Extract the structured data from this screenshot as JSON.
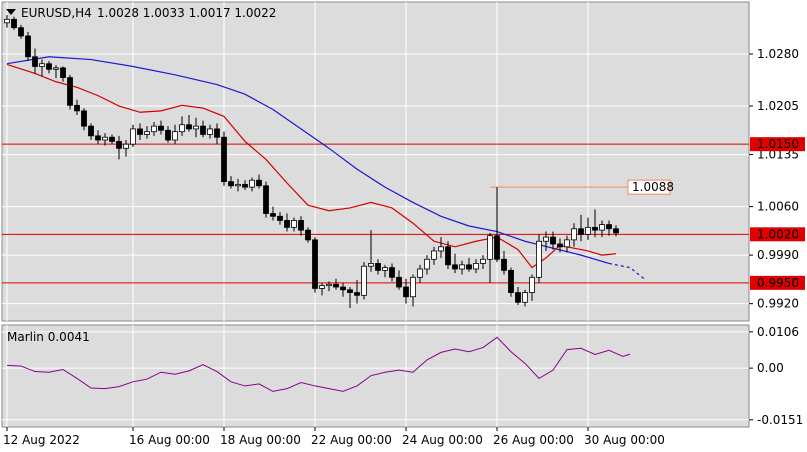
{
  "header": {
    "symbol_label": "EURUSD,H4",
    "ohlc_label": "1.0028 1.0033 1.0017 1.0022"
  },
  "indicator": {
    "label": "Marlin 0.0041"
  },
  "colors": {
    "background": "#ffffff",
    "panel": "#dcdcdc",
    "grid": "#ffffff",
    "candle": "#000000",
    "bull_fill": "#ffffff",
    "bear_fill": "#000000",
    "ma_fast": "#d40000",
    "ma_slow": "#1a1ad0",
    "levels": "#e00000",
    "target": "#f08a5a",
    "oscillator": "#8a008a"
  },
  "chart_data": [
    {
      "type": "candlestick",
      "title": "EURUSD,H4",
      "price_axis_ticks": [
        "1.0280",
        "1.0205",
        "1.0135",
        "1.0060",
        "0.9990",
        "0.9920"
      ],
      "price_tick_values": [
        1.028,
        1.0205,
        1.0135,
        1.006,
        0.999,
        0.992
      ],
      "ylim": [
        0.9895,
        1.0355
      ],
      "time_axis_labels": [
        "12 Aug 2022",
        "16 Aug 00:00",
        "18 Aug 00:00",
        "22 Aug 00:00",
        "24 Aug 00:00",
        "26 Aug 00:00",
        "30 Aug 00:00"
      ],
      "time_label_bars": [
        0,
        18,
        31,
        44,
        57,
        70,
        83
      ],
      "horizontal_levels": [
        {
          "value": 1.015,
          "label": "1.0150"
        },
        {
          "value": 1.002,
          "label": "1.0020"
        },
        {
          "value": 0.995,
          "label": "0.9950"
        }
      ],
      "target_level": {
        "value": 1.0088,
        "label": "1.0088",
        "from_bar": 69,
        "to_bar": 89
      },
      "candles": [
        [
          1.0325,
          1.0336,
          1.0318,
          1.033
        ],
        [
          1.033,
          1.0334,
          1.0315,
          1.0318
        ],
        [
          1.0318,
          1.0322,
          1.0302,
          1.0306
        ],
        [
          1.0306,
          1.0312,
          1.027,
          1.0276
        ],
        [
          1.0276,
          1.0288,
          1.0252,
          1.0262
        ],
        [
          1.0262,
          1.0272,
          1.0248,
          1.0266
        ],
        [
          1.0266,
          1.027,
          1.0252,
          1.0258
        ],
        [
          1.0258,
          1.0264,
          1.0245,
          1.026
        ],
        [
          1.026,
          1.0262,
          1.024,
          1.0246
        ],
        [
          1.0246,
          1.025,
          1.02,
          1.0206
        ],
        [
          1.0206,
          1.0214,
          1.0192,
          1.0198
        ],
        [
          1.0198,
          1.0202,
          1.017,
          1.0176
        ],
        [
          1.0176,
          1.018,
          1.0156,
          1.0162
        ],
        [
          1.0162,
          1.017,
          1.015,
          1.0156
        ],
        [
          1.0156,
          1.0166,
          1.0148,
          1.016
        ],
        [
          1.016,
          1.0164,
          1.015,
          1.0154
        ],
        [
          1.0154,
          1.0162,
          1.0128,
          1.0144
        ],
        [
          1.0144,
          1.0156,
          1.0132,
          1.015
        ],
        [
          1.015,
          1.0178,
          1.0146,
          1.0172
        ],
        [
          1.0172,
          1.018,
          1.0156,
          1.0164
        ],
        [
          1.0164,
          1.0176,
          1.0158,
          1.0168
        ],
        [
          1.0168,
          1.0182,
          1.0162,
          1.0176
        ],
        [
          1.0176,
          1.0184,
          1.0164,
          1.017
        ],
        [
          1.017,
          1.0176,
          1.0152,
          1.0156
        ],
        [
          1.0156,
          1.0178,
          1.015,
          1.0168
        ],
        [
          1.0168,
          1.019,
          1.0162,
          1.0178
        ],
        [
          1.0178,
          1.0192,
          1.0168,
          1.0172
        ],
        [
          1.0172,
          1.0188,
          1.016,
          1.0176
        ],
        [
          1.0176,
          1.0184,
          1.016,
          1.0164
        ],
        [
          1.0164,
          1.0178,
          1.0158,
          1.0172
        ],
        [
          1.0172,
          1.018,
          1.015,
          1.016
        ],
        [
          1.016,
          1.0168,
          1.009,
          1.0096
        ],
        [
          1.0096,
          1.0104,
          1.0086,
          1.009
        ],
        [
          1.009,
          1.01,
          1.0082,
          1.0092
        ],
        [
          1.0092,
          1.0098,
          1.0084,
          1.0088
        ],
        [
          1.0088,
          1.0102,
          1.0082,
          1.0098
        ],
        [
          1.0098,
          1.0106,
          1.0086,
          1.009
        ],
        [
          1.009,
          1.0096,
          1.0044,
          1.005
        ],
        [
          1.005,
          1.006,
          1.004,
          1.0046
        ],
        [
          1.0046,
          1.0052,
          1.0034,
          1.004
        ],
        [
          1.004,
          1.005,
          1.0024,
          1.003
        ],
        [
          1.003,
          1.0044,
          1.0024,
          1.004
        ],
        [
          1.004,
          1.0046,
          1.0018,
          1.0026
        ],
        [
          1.0026,
          1.003,
          1.0008,
          1.0012
        ],
        [
          1.0012,
          1.0016,
          0.9936,
          0.9942
        ],
        [
          0.9942,
          0.995,
          0.9932,
          0.9946
        ],
        [
          0.9946,
          0.9952,
          0.9938,
          0.9948
        ],
        [
          0.9948,
          0.9956,
          0.994,
          0.9944
        ],
        [
          0.9944,
          0.995,
          0.993,
          0.994
        ],
        [
          0.994,
          0.9944,
          0.9914,
          0.9936
        ],
        [
          0.9936,
          0.9954,
          0.992,
          0.9932
        ],
        [
          0.9932,
          0.998,
          0.9926,
          0.9974
        ],
        [
          0.9974,
          1.0026,
          0.9966,
          0.9978
        ],
        [
          0.9978,
          0.9984,
          0.9962,
          0.9968
        ],
        [
          0.9968,
          0.9976,
          0.9958,
          0.9972
        ],
        [
          0.9972,
          0.9978,
          0.9952,
          0.9958
        ],
        [
          0.9958,
          0.9968,
          0.994,
          0.9944
        ],
        [
          0.9944,
          0.9956,
          0.992,
          0.993
        ],
        [
          0.993,
          0.9962,
          0.9916,
          0.9958
        ],
        [
          0.9958,
          0.9976,
          0.995,
          0.997
        ],
        [
          0.997,
          0.999,
          0.9962,
          0.9984
        ],
        [
          0.9984,
          1.0002,
          0.9976,
          0.9996
        ],
        [
          0.9996,
          1.0016,
          0.9986,
          1.0002
        ],
        [
          1.0002,
          1.001,
          0.997,
          0.9976
        ],
        [
          0.9976,
          0.9992,
          0.9964,
          0.997
        ],
        [
          0.997,
          0.9982,
          0.9962,
          0.9976
        ],
        [
          0.9976,
          0.9986,
          0.9966,
          0.997
        ],
        [
          0.997,
          0.9984,
          0.9964,
          0.9978
        ],
        [
          0.9978,
          0.999,
          0.997,
          0.9984
        ],
        [
          0.9984,
          1.0022,
          0.995,
          1.0018
        ],
        [
          1.0018,
          1.0088,
          0.998,
          0.9984
        ],
        [
          0.9984,
          0.9996,
          0.9962,
          0.9968
        ],
        [
          0.9968,
          0.9972,
          0.993,
          0.9936
        ],
        [
          0.9936,
          0.9944,
          0.9918,
          0.9922
        ],
        [
          0.9922,
          0.994,
          0.9916,
          0.9936
        ],
        [
          0.9936,
          0.9962,
          0.9924,
          0.9958
        ],
        [
          0.9958,
          1.002,
          0.995,
          1.001
        ],
        [
          1.001,
          1.0024,
          0.9996,
          1.0016
        ],
        [
          1.0016,
          1.0024,
          0.9998,
          1.0006
        ],
        [
          1.0006,
          1.0014,
          0.9994,
          1.0002
        ],
        [
          1.0002,
          1.0018,
          0.9994,
          1.0012
        ],
        [
          1.0012,
          1.0036,
          1.0002,
          1.0028
        ],
        [
          1.0028,
          1.0048,
          1.001,
          1.002
        ],
        [
          1.002,
          1.0044,
          1.0012,
          1.003
        ],
        [
          1.003,
          1.0056,
          1.0016,
          1.0026
        ],
        [
          1.0026,
          1.004,
          1.0016,
          1.0034
        ],
        [
          1.0034,
          1.004,
          1.0018,
          1.0028
        ],
        [
          1.0028,
          1.0033,
          1.0017,
          1.0022
        ]
      ],
      "ma_fast": [
        [
          0,
          1.0265
        ],
        [
          4,
          1.0252
        ],
        [
          7,
          1.024
        ],
        [
          10,
          1.0232
        ],
        [
          13,
          1.022
        ],
        [
          16,
          1.0205
        ],
        [
          19,
          1.0196
        ],
        [
          22,
          1.0198
        ],
        [
          25,
          1.0206
        ],
        [
          28,
          1.0202
        ],
        [
          31,
          1.019
        ],
        [
          34,
          1.0154
        ],
        [
          37,
          1.0128
        ],
        [
          40,
          1.0094
        ],
        [
          43,
          1.0062
        ],
        [
          46,
          1.0054
        ],
        [
          49,
          1.0058
        ],
        [
          52,
          1.0066
        ],
        [
          55,
          1.0058
        ],
        [
          58,
          1.0036
        ],
        [
          61,
          1.001
        ],
        [
          64,
          1.0002
        ],
        [
          67,
          1.001
        ],
        [
          70,
          1.0016
        ],
        [
          73,
          0.9998
        ],
        [
          75,
          0.9972
        ],
        [
          77,
          0.9986
        ],
        [
          79,
          1.0004
        ],
        [
          81,
          1.0
        ],
        [
          83,
          0.9996
        ],
        [
          85,
          0.999
        ],
        [
          87,
          0.9992
        ]
      ],
      "ma_slow": [
        [
          0,
          1.0266
        ],
        [
          6,
          1.0276
        ],
        [
          12,
          1.0272
        ],
        [
          18,
          1.0262
        ],
        [
          24,
          1.025
        ],
        [
          30,
          1.0236
        ],
        [
          34,
          1.0222
        ],
        [
          38,
          1.02
        ],
        [
          42,
          1.0172
        ],
        [
          46,
          1.0144
        ],
        [
          50,
          1.0114
        ],
        [
          54,
          1.0088
        ],
        [
          58,
          1.0066
        ],
        [
          62,
          1.0046
        ],
        [
          66,
          1.0032
        ],
        [
          70,
          1.0024
        ],
        [
          74,
          1.001
        ],
        [
          78,
          1.0
        ],
        [
          82,
          0.999
        ],
        [
          86,
          0.9978
        ]
      ],
      "ma_slow_projection": [
        [
          86,
          0.9978
        ],
        [
          89,
          0.9972
        ],
        [
          91,
          0.9956
        ]
      ]
    },
    {
      "type": "line",
      "title": "Marlin 0.0041",
      "axis_ticks": [
        "0.0106",
        "0.00",
        "-0.0151"
      ],
      "tick_values": [
        0.0106,
        0.0,
        -0.0151
      ],
      "ylim": [
        -0.0172,
        0.0126
      ],
      "series": [
        {
          "values": [
            [
              0,
              0.0008
            ],
            [
              2,
              0.0006
            ],
            [
              4,
              -0.001
            ],
            [
              6,
              -0.0012
            ],
            [
              8,
              -0.0004
            ],
            [
              10,
              -0.003
            ],
            [
              12,
              -0.0058
            ],
            [
              14,
              -0.006
            ],
            [
              16,
              -0.0054
            ],
            [
              18,
              -0.004
            ],
            [
              20,
              -0.0032
            ],
            [
              22,
              -0.0012
            ],
            [
              24,
              -0.0018
            ],
            [
              26,
              -0.0008
            ],
            [
              28,
              0.001
            ],
            [
              30,
              -0.001
            ],
            [
              32,
              -0.004
            ],
            [
              34,
              -0.0052
            ],
            [
              36,
              -0.0046
            ],
            [
              38,
              -0.0068
            ],
            [
              40,
              -0.006
            ],
            [
              42,
              -0.0042
            ],
            [
              44,
              -0.0052
            ],
            [
              46,
              -0.006
            ],
            [
              48,
              -0.0068
            ],
            [
              50,
              -0.0052
            ],
            [
              52,
              -0.0022
            ],
            [
              54,
              -0.0012
            ],
            [
              56,
              -0.0006
            ],
            [
              58,
              -0.0012
            ],
            [
              60,
              0.0024
            ],
            [
              62,
              0.0046
            ],
            [
              64,
              0.0056
            ],
            [
              66,
              0.0048
            ],
            [
              68,
              0.006
            ],
            [
              70,
              0.009
            ],
            [
              72,
              0.0048
            ],
            [
              74,
              0.0014
            ],
            [
              76,
              -0.003
            ],
            [
              78,
              -0.0006
            ],
            [
              80,
              0.0054
            ],
            [
              82,
              0.0058
            ],
            [
              84,
              0.004
            ],
            [
              86,
              0.0052
            ],
            [
              88,
              0.0034
            ],
            [
              89,
              0.0041
            ]
          ]
        }
      ]
    }
  ]
}
